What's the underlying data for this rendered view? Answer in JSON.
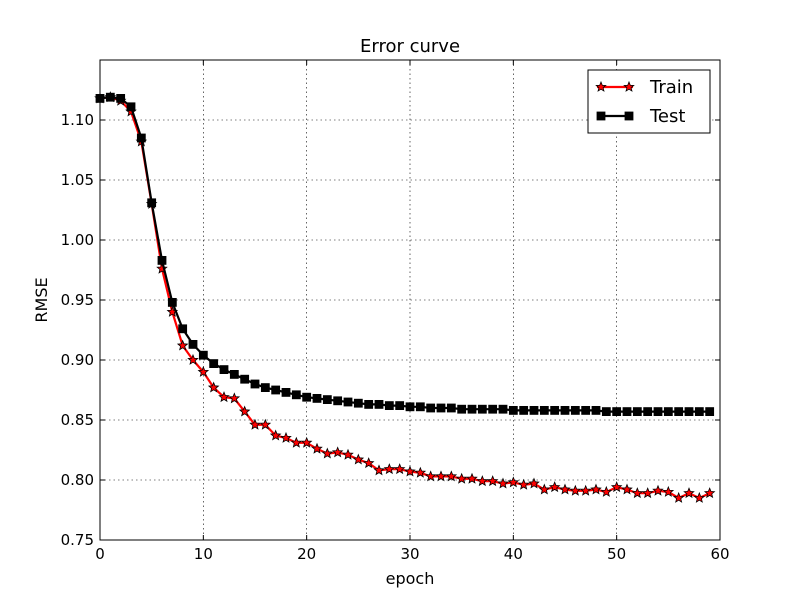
{
  "chart_data": {
    "type": "line",
    "title": "Error curve",
    "xlabel": "epoch",
    "ylabel": "RMSE",
    "xlim": [
      0,
      60
    ],
    "ylim": [
      0.75,
      1.15
    ],
    "xticks": [
      0,
      10,
      20,
      30,
      40,
      50,
      60
    ],
    "yticks": [
      0.75,
      0.8,
      0.85,
      0.9,
      0.95,
      1.0,
      1.05,
      1.1
    ],
    "xtick_labels": [
      "0",
      "10",
      "20",
      "30",
      "40",
      "50",
      "60"
    ],
    "ytick_labels": [
      "0.75",
      "0.80",
      "0.85",
      "0.90",
      "0.95",
      "1.00",
      "1.05",
      "1.10"
    ],
    "grid": true,
    "legend_position": "top-right",
    "x": [
      0,
      1,
      2,
      3,
      4,
      5,
      6,
      7,
      8,
      9,
      10,
      11,
      12,
      13,
      14,
      15,
      16,
      17,
      18,
      19,
      20,
      21,
      22,
      23,
      24,
      25,
      26,
      27,
      28,
      29,
      30,
      31,
      32,
      33,
      34,
      35,
      36,
      37,
      38,
      39,
      40,
      41,
      42,
      43,
      44,
      45,
      46,
      47,
      48,
      49,
      50,
      51,
      52,
      53,
      54,
      55,
      56,
      57,
      58,
      59
    ],
    "series": [
      {
        "name": "Train",
        "color": "#ff0000",
        "marker": "star",
        "values": [
          1.118,
          1.119,
          1.116,
          1.107,
          1.082,
          1.03,
          0.976,
          0.94,
          0.912,
          0.9,
          0.89,
          0.877,
          0.869,
          0.868,
          0.857,
          0.846,
          0.846,
          0.837,
          0.835,
          0.831,
          0.831,
          0.826,
          0.822,
          0.823,
          0.821,
          0.817,
          0.814,
          0.808,
          0.809,
          0.809,
          0.807,
          0.806,
          0.803,
          0.803,
          0.803,
          0.801,
          0.801,
          0.799,
          0.799,
          0.797,
          0.798,
          0.796,
          0.797,
          0.792,
          0.794,
          0.792,
          0.791,
          0.791,
          0.792,
          0.79,
          0.794,
          0.792,
          0.789,
          0.789,
          0.791,
          0.79,
          0.785,
          0.789,
          0.785,
          0.789
        ]
      },
      {
        "name": "Test",
        "color": "#000000",
        "marker": "square",
        "values": [
          1.118,
          1.119,
          1.118,
          1.111,
          1.085,
          1.031,
          0.983,
          0.948,
          0.926,
          0.913,
          0.904,
          0.897,
          0.892,
          0.888,
          0.884,
          0.88,
          0.877,
          0.875,
          0.873,
          0.871,
          0.869,
          0.868,
          0.867,
          0.866,
          0.865,
          0.864,
          0.863,
          0.863,
          0.862,
          0.862,
          0.861,
          0.861,
          0.86,
          0.86,
          0.86,
          0.859,
          0.859,
          0.859,
          0.859,
          0.859,
          0.858,
          0.858,
          0.858,
          0.858,
          0.858,
          0.858,
          0.858,
          0.858,
          0.858,
          0.857,
          0.857,
          0.857,
          0.857,
          0.857,
          0.857,
          0.857,
          0.857,
          0.857,
          0.857,
          0.857
        ]
      }
    ]
  }
}
